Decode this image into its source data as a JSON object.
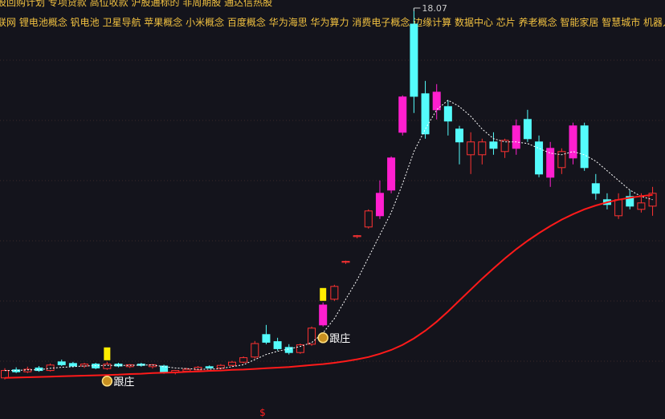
{
  "chart_data": {
    "type": "candlestick",
    "tags_line1": "股回购计划 专项贷款 高位收款 沪股通标的 非周期股 通达信热股",
    "tags_line2": "联网 锂电池概念 钒电池 卫星导航 苹果概念 小米概念 百度概念 华为海思 华为算力 消费电子概念 边缘计算 数据中心 芯片 养老概念 智能家居 智慧城市 机器人概",
    "open": [
      6.55,
      6.8,
      6.74,
      6.86,
      6.78,
      7.05,
      7.0,
      6.92,
      6.98,
      6.84,
      6.98,
      6.9,
      6.98,
      6.9,
      6.92,
      6.72,
      6.76,
      6.8,
      6.9,
      6.86,
      6.94,
      7.04,
      7.2,
      7.9,
      7.68,
      7.5,
      7.34,
      7.6,
      8.2,
      9.0,
      10.15,
      10.95,
      11.25,
      11.6,
      12.4,
      14.2,
      17.57,
      15.4,
      14.9,
      15.0,
      14.3,
      13.5,
      13.5,
      13.9,
      13.6,
      13.7,
      14.6,
      13.9,
      12.8,
      13.1,
      13.4,
      14.4,
      12.6,
      12.1,
      11.6,
      12.2,
      11.8,
      11.9
    ],
    "high": [
      6.85,
      6.88,
      6.9,
      6.92,
      7.0,
      7.12,
      7.05,
      7.02,
      7.02,
      7.05,
      7.02,
      6.98,
      7.02,
      6.98,
      6.96,
      6.8,
      6.86,
      6.92,
      6.94,
      6.98,
      7.08,
      7.22,
      7.7,
      8.2,
      7.8,
      7.6,
      7.62,
      8.15,
      8.9,
      9.45,
      10.2,
      11.0,
      11.8,
      12.7,
      13.45,
      15.35,
      18.07,
      15.8,
      15.7,
      15.2,
      14.4,
      14.2,
      14.0,
      14.2,
      14.0,
      14.6,
      14.9,
      14.1,
      13.9,
      13.7,
      14.5,
      14.5,
      12.9,
      12.3,
      12.3,
      12.4,
      12.3,
      12.5
    ],
    "low": [
      6.5,
      6.7,
      6.7,
      6.74,
      6.75,
      6.92,
      6.88,
      6.86,
      6.82,
      6.8,
      6.88,
      6.86,
      6.9,
      6.84,
      6.68,
      6.66,
      6.72,
      6.78,
      6.84,
      6.82,
      6.9,
      7.0,
      7.15,
      7.6,
      7.4,
      7.28,
      7.3,
      7.55,
      8.15,
      8.95,
      10.1,
      10.9,
      11.2,
      11.5,
      12.3,
      14.1,
      14.8,
      14.0,
      14.6,
      14.1,
      13.2,
      12.9,
      13.2,
      13.5,
      13.4,
      13.5,
      13.9,
      12.8,
      12.5,
      12.9,
      13.2,
      13.0,
      12.1,
      11.8,
      11.5,
      11.8,
      11.7,
      11.6
    ],
    "close": [
      6.78,
      6.74,
      6.82,
      6.78,
      6.95,
      6.96,
      6.92,
      6.98,
      6.86,
      6.98,
      6.92,
      6.96,
      6.94,
      6.96,
      6.74,
      6.78,
      6.82,
      6.88,
      6.86,
      6.94,
      7.04,
      7.18,
      7.62,
      7.66,
      7.46,
      7.34,
      7.58,
      8.1,
      8.82,
      9.4,
      10.18,
      10.98,
      11.75,
      12.3,
      13.4,
      15.3,
      15.32,
      14.15,
      15.45,
      14.55,
      13.9,
      13.9,
      13.9,
      13.7,
      13.95,
      14.4,
      14.0,
      12.9,
      13.7,
      13.6,
      14.4,
      13.1,
      12.3,
      11.95,
      12.1,
      11.9,
      12.0,
      12.3
    ],
    "up_color": "#ff3232",
    "strong_up_color": "#ff1fcf",
    "down_color": "#54fcfc",
    "series": [
      {
        "color": "#ffffff",
        "dashed": true,
        "values": [
          6.78,
          6.78,
          6.8,
          6.8,
          6.85,
          6.88,
          6.9,
          6.92,
          6.93,
          6.94,
          6.94,
          6.94,
          6.95,
          6.95,
          6.9,
          6.86,
          6.84,
          6.82,
          6.82,
          6.84,
          6.9,
          6.96,
          7.12,
          7.28,
          7.38,
          7.45,
          7.53,
          7.65,
          7.95,
          8.4,
          9.0,
          9.6,
          10.3,
          11.0,
          11.7,
          12.6,
          13.6,
          14.3,
          14.9,
          15.2,
          15.0,
          14.7,
          14.3,
          14.0,
          13.9,
          13.9,
          13.85,
          13.7,
          13.55,
          13.5,
          13.6,
          13.5,
          13.3,
          13.0,
          12.7,
          12.4,
          12.2,
          12.1
        ]
      },
      {
        "color": "#ff1a1a",
        "dashed": false,
        "values": [
          6.55,
          6.56,
          6.57,
          6.58,
          6.59,
          6.6,
          6.61,
          6.62,
          6.63,
          6.64,
          6.65,
          6.67,
          6.68,
          6.7,
          6.71,
          6.72,
          6.74,
          6.75,
          6.77,
          6.78,
          6.8,
          6.81,
          6.83,
          6.85,
          6.87,
          6.89,
          6.92,
          6.95,
          6.98,
          7.02,
          7.07,
          7.13,
          7.2,
          7.3,
          7.42,
          7.58,
          7.78,
          8.02,
          8.3,
          8.62,
          8.96,
          9.3,
          9.64,
          9.96,
          10.27,
          10.56,
          10.82,
          11.06,
          11.28,
          11.48,
          11.65,
          11.8,
          11.92,
          12.02,
          12.1,
          12.16,
          12.21,
          12.25
        ]
      }
    ],
    "signals": [
      {
        "label": "跟庄",
        "category": 9
      },
      {
        "label": "跟庄",
        "category": 28
      }
    ],
    "bottom_marker": "$",
    "ylim": [
      5.27,
      18.32
    ]
  }
}
